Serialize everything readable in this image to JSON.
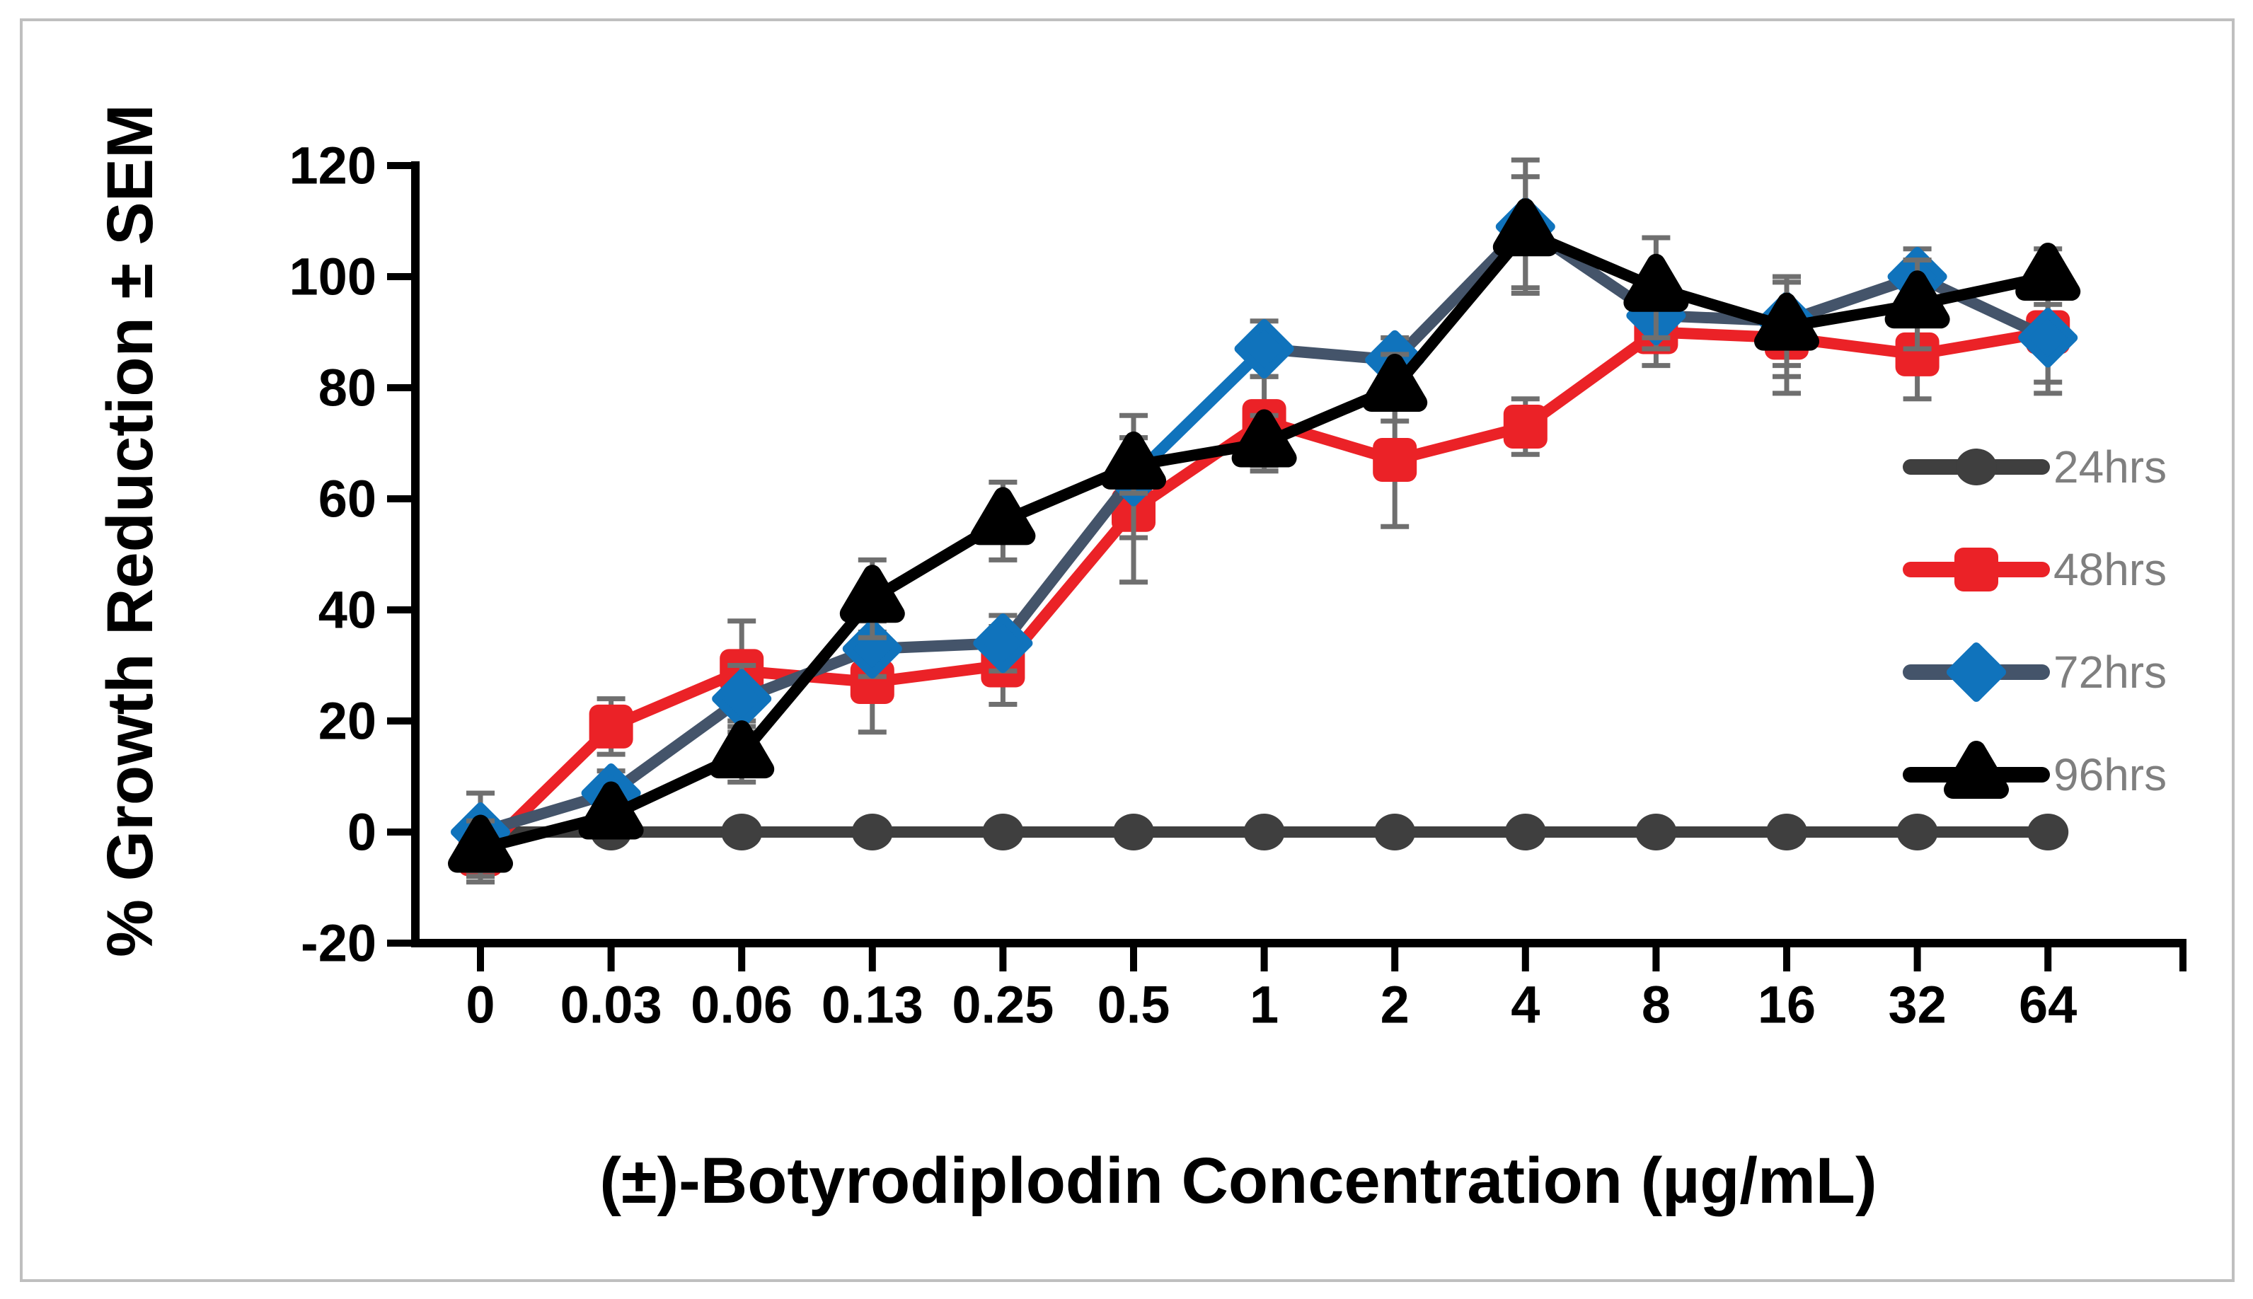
{
  "chart_data": {
    "type": "line",
    "title": "",
    "xlabel": "(±)-Botyrodiplodin Concentration (µg/mL)",
    "ylabel": "% Growth Reduction ± SEM",
    "categories": [
      "0",
      "0.03",
      "0.06",
      "0.13",
      "0.25",
      "0.5",
      "1",
      "2",
      "4",
      "8",
      "16",
      "32",
      "64"
    ],
    "yticks": [
      120,
      100,
      80,
      60,
      40,
      20,
      0,
      -20
    ],
    "ylim": [
      -20,
      120
    ],
    "grid": false,
    "legend_position": "right",
    "error_bar_color": "#6F6F6F",
    "legend_text_color": "#7F7F7F",
    "series": [
      {
        "name": "24hrs",
        "marker": "circle",
        "line_color": "#3F3F3F",
        "marker_color": "#3F3F3F",
        "values": [
          0,
          0,
          0,
          0,
          0,
          0,
          0,
          0,
          0,
          0,
          0,
          0,
          0
        ],
        "sem": [
          0,
          0,
          0,
          0,
          0,
          0,
          0,
          0,
          0,
          0,
          0,
          0,
          0
        ]
      },
      {
        "name": "48hrs",
        "marker": "square",
        "line_color": "#EB2227",
        "marker_color": "#EB2227",
        "values": [
          -4,
          19,
          29,
          27,
          30,
          58,
          74,
          67,
          73,
          90,
          89,
          86,
          90
        ],
        "sem": [
          5,
          5,
          9,
          9,
          7,
          13,
          8,
          12,
          5,
          6,
          10,
          8,
          11
        ]
      },
      {
        "name": "72hrs",
        "marker": "diamond",
        "line_color": "#44546A",
        "marker_color": "#1073BC",
        "line_color_segments": {
          "5": "#1073BC"
        },
        "values": [
          0,
          7,
          24,
          33,
          34,
          64,
          87,
          85,
          109,
          93,
          92,
          100,
          89
        ],
        "sem": [
          7,
          4,
          6,
          5,
          5,
          11,
          5,
          4,
          12,
          6,
          8,
          5,
          8
        ]
      },
      {
        "name": "96hrs",
        "marker": "triangle",
        "line_color": "#000000",
        "marker_color": "#000000",
        "values": [
          -3,
          3,
          14,
          42,
          56,
          66,
          70,
          80,
          108,
          98,
          91,
          95,
          100
        ],
        "sem": [
          5,
          3,
          5,
          7,
          7,
          5,
          5,
          6,
          10,
          9,
          9,
          8,
          5
        ]
      }
    ]
  },
  "frame": {
    "border_color": "#BFBFBF",
    "background": "#FFFFFF"
  }
}
